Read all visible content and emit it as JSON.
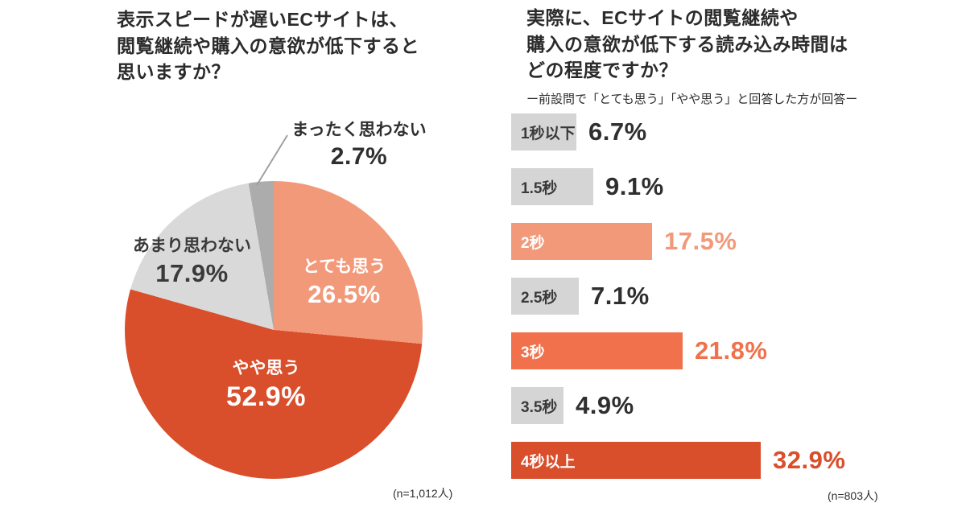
{
  "chart_data": [
    {
      "type": "pie",
      "title": "表示スピードが遅いECサイトは、\n閲覧継続や購入の意欲が低下すると\n思いますか？",
      "n_label": "(n=1,012人)",
      "start_angle_deg": 0,
      "direction": "clockwise",
      "slices": [
        {
          "label": "とても思う",
          "value": 26.5,
          "pct": "26.5%",
          "color": "#F2997A",
          "text_color": "#ffffff"
        },
        {
          "label": "やや思う",
          "value": 52.9,
          "pct": "52.9%",
          "color": "#D94E2B",
          "text_color": "#ffffff"
        },
        {
          "label": "あまり思わない",
          "value": 17.9,
          "pct": "17.9%",
          "color": "#D9D9D9",
          "text_color": "#3a3a3a"
        },
        {
          "label": "まったく思わない",
          "value": 2.7,
          "pct": "2.7%",
          "color": "#ACACAC",
          "text_color": "#2f2f2f"
        }
      ]
    },
    {
      "type": "bar",
      "orientation": "horizontal",
      "title": "実際に、ECサイトの閲覧継続や\n購入の意欲が低下する読み込み時間は\nどの程度ですか？",
      "subtitle": "ー前設問で「とても思う」「やや思う」と回答した方が回答ー",
      "n_label": "(n=803人)",
      "categories": [
        "1秒以下",
        "1.5秒",
        "2秒",
        "2.5秒",
        "3秒",
        "3.5秒",
        "4秒以上"
      ],
      "values": [
        6.7,
        9.1,
        17.5,
        7.1,
        21.8,
        4.9,
        32.9
      ],
      "value_labels": [
        "6.7%",
        "9.1%",
        "17.5%",
        "7.1%",
        "21.8%",
        "4.9%",
        "32.9%"
      ],
      "bar_colors": [
        "#D5D5D5",
        "#D5D5D5",
        "#F2997A",
        "#D5D5D5",
        "#F0714B",
        "#D5D5D5",
        "#D94E2B"
      ],
      "category_text_colors": [
        "#3a3a3a",
        "#3a3a3a",
        "#ffffff",
        "#3a3a3a",
        "#ffffff",
        "#3a3a3a",
        "#ffffff"
      ],
      "value_text_colors": [
        "#2f2f2f",
        "#2f2f2f",
        "#F2997A",
        "#2f2f2f",
        "#F0714B",
        "#2f2f2f",
        "#D94E2B"
      ],
      "xlim": [
        0,
        35
      ]
    }
  ],
  "leader_line_color": "#a0a0a0"
}
